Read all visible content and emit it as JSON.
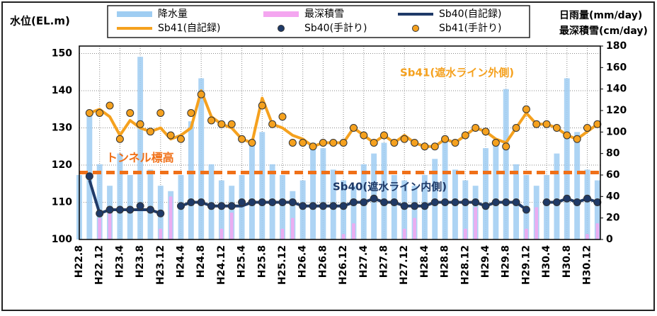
{
  "chart_data": {
    "type": "combo",
    "ylabel": "水位(EL.m)",
    "y2label": [
      "日雨量(mm/day)",
      "最深積雪(cm/day)"
    ],
    "categories": [
      "H22.8",
      null,
      "H22.12",
      null,
      "H23.4",
      null,
      "H23.8",
      null,
      "H23.12",
      null,
      "H24.4",
      null,
      "H24.8",
      null,
      "H24.12",
      null,
      "H25.4",
      null,
      "H25.8",
      null,
      "H25.12",
      null,
      "H26.4",
      null,
      "H26.8",
      null,
      "H26.12",
      null,
      "H27.4",
      null,
      "H27.8",
      null,
      "H27.12",
      null,
      "H28.4",
      null,
      "H28.8",
      null,
      "H28.12",
      null,
      "H29.4",
      null,
      "H29.8",
      null,
      "H29.12",
      null,
      "H30.4",
      null,
      "H30.8",
      null,
      "H30.12",
      null
    ],
    "ylim": [
      100,
      152
    ],
    "yticks": [
      100,
      110,
      120,
      130,
      140,
      150
    ],
    "y2lim": [
      0,
      180
    ],
    "y2ticks": [
      0,
      20,
      40,
      60,
      80,
      100,
      120,
      140,
      160,
      180
    ],
    "grid": true,
    "series": [
      {
        "name": "降水量",
        "style": "bar",
        "axis": "y2",
        "color": "#9fcdf2",
        "values": [
          60,
          120,
          70,
          50,
          80,
          60,
          170,
          65,
          50,
          45,
          60,
          110,
          150,
          70,
          55,
          50,
          60,
          90,
          100,
          70,
          60,
          45,
          55,
          90,
          85,
          65,
          55,
          50,
          70,
          80,
          90,
          60,
          55,
          50,
          60,
          75,
          95,
          65,
          55,
          50,
          85,
          90,
          140,
          70,
          60,
          50,
          60,
          80,
          150,
          100,
          65,
          55
        ]
      },
      {
        "name": "最深積雪",
        "style": "bar",
        "axis": "y2",
        "color": "#f4a6f0",
        "values": [
          0,
          0,
          20,
          30,
          0,
          0,
          0,
          0,
          10,
          40,
          0,
          0,
          0,
          0,
          10,
          25,
          0,
          0,
          0,
          0,
          10,
          20,
          0,
          0,
          0,
          0,
          5,
          15,
          0,
          0,
          0,
          0,
          10,
          20,
          0,
          0,
          0,
          0,
          10,
          30,
          0,
          0,
          0,
          0,
          10,
          30,
          0,
          0,
          0,
          0,
          5,
          15
        ]
      },
      {
        "name": "Sb40(自記録)",
        "style": "line",
        "color": "#1f3a68",
        "values": [
          null,
          116,
          107,
          108,
          108,
          108,
          108,
          108,
          107,
          null,
          109,
          110,
          110,
          109,
          109,
          109,
          109,
          110,
          110,
          110,
          110,
          110,
          109,
          109,
          109,
          109,
          109,
          110,
          110,
          111,
          110,
          110,
          109,
          109,
          109,
          110,
          110,
          110,
          110,
          110,
          109,
          110,
          110,
          110,
          108,
          null,
          110,
          110,
          111,
          110,
          111,
          110
        ]
      },
      {
        "name": "Sb41(自記録)",
        "style": "line",
        "color": "#f5a11e",
        "values": [
          null,
          134,
          135,
          133,
          128,
          132,
          130,
          129,
          130,
          127,
          128,
          130,
          140,
          133,
          131,
          130,
          127,
          126,
          138,
          131,
          130,
          128,
          127,
          125,
          126,
          126,
          126,
          130,
          128,
          126,
          128,
          126,
          128,
          126,
          125,
          125,
          127,
          126,
          128,
          130,
          129,
          127,
          126,
          130,
          134,
          131,
          131,
          130,
          128,
          127,
          129,
          131
        ]
      },
      {
        "name": "Sb40(手計り)",
        "style": "dot",
        "color": "#1f3a68",
        "values": [
          null,
          117,
          107,
          108,
          108,
          108,
          109,
          108,
          107,
          null,
          109,
          110,
          110,
          109,
          109,
          109,
          110,
          110,
          110,
          110,
          110,
          110,
          109,
          109,
          109,
          109,
          109,
          110,
          110,
          111,
          110,
          110,
          109,
          109,
          109,
          110,
          110,
          110,
          110,
          110,
          109,
          110,
          110,
          110,
          108,
          null,
          110,
          110,
          111,
          110,
          111,
          110
        ]
      },
      {
        "name": "Sb41(手計り)",
        "style": "dot",
        "color": "#f5a11e",
        "values": [
          null,
          134,
          134,
          136,
          127,
          134,
          131,
          129,
          134,
          128,
          127,
          134,
          139,
          132,
          131,
          131,
          127,
          126,
          136,
          131,
          133,
          126,
          126,
          125,
          126,
          126,
          126,
          130,
          128,
          126,
          128,
          126,
          127,
          126,
          125,
          125,
          127,
          126,
          128,
          130,
          129,
          126,
          125,
          130,
          135,
          131,
          131,
          130,
          128,
          127,
          130,
          131
        ]
      }
    ],
    "reference_line": {
      "label": "トンネル標高",
      "value": 118,
      "color": "#f07018"
    },
    "annotations": [
      "Sb41(遮水ライン外側)",
      "Sb40(遮水ライン内側)"
    ]
  }
}
